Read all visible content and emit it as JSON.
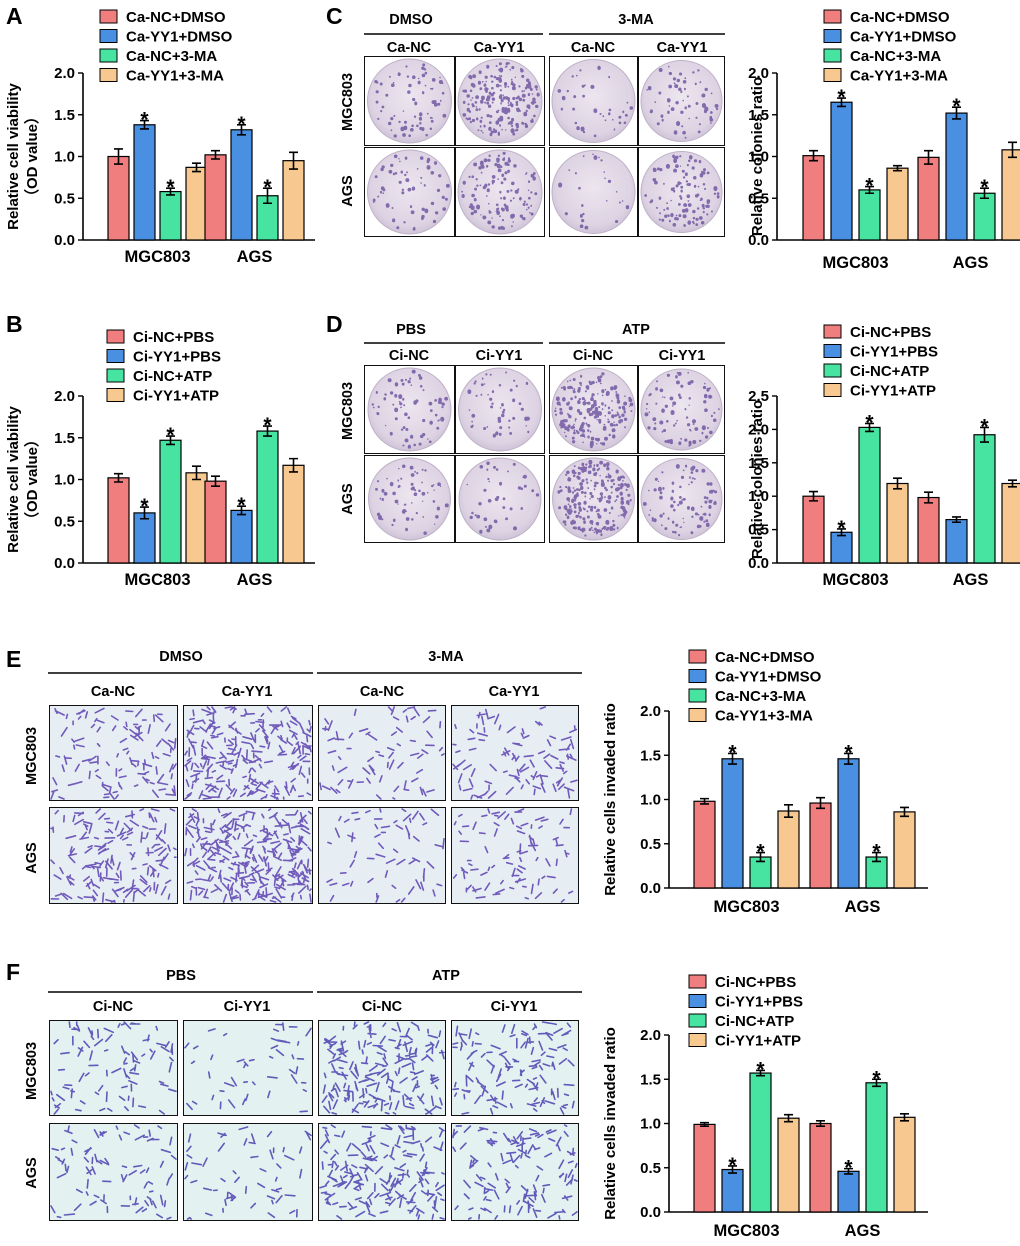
{
  "colors": {
    "c1": "#f07e7e",
    "c2": "#4a90e2",
    "c3": "#47e3a0",
    "c4": "#f8c891"
  },
  "panel_letters": [
    "A",
    "B",
    "C",
    "D",
    "E",
    "F"
  ],
  "photo_grids": [
    {
      "id": "C",
      "groups": [
        "DMSO",
        "3-MA"
      ],
      "columns": [
        "Ca-NC",
        "Ca-YY1",
        "Ca-NC",
        "Ca-YY1"
      ],
      "rows": [
        "MGC803",
        "AGS"
      ],
      "kind": "colony"
    },
    {
      "id": "D",
      "groups": [
        "PBS",
        "ATP"
      ],
      "columns": [
        "Ci-NC",
        "Ci-YY1",
        "Ci-NC",
        "Ci-YY1"
      ],
      "rows": [
        "MGC803",
        "AGS"
      ],
      "kind": "colony"
    },
    {
      "id": "E",
      "groups": [
        "DMSO",
        "3-MA"
      ],
      "columns": [
        "Ca-NC",
        "Ca-YY1",
        "Ca-NC",
        "Ca-YY1"
      ],
      "rows": [
        "MGC803",
        "AGS"
      ],
      "kind": "invasion"
    },
    {
      "id": "F",
      "groups": [
        "PBS",
        "ATP"
      ],
      "columns": [
        "Ci-NC",
        "Ci-YY1",
        "Ci-NC",
        "Ci-YY1"
      ],
      "rows": [
        "MGC803",
        "AGS"
      ],
      "kind": "invasion"
    }
  ],
  "chart_data": [
    {
      "id": "A",
      "type": "bar",
      "ylabel": [
        "Relative cell viability",
        "（OD value）"
      ],
      "categories": [
        "MGC803",
        "AGS"
      ],
      "ylim": [
        0,
        2.0
      ],
      "yticks": [
        "0.0",
        "0.5",
        "1.0",
        "1.5",
        "2.0"
      ],
      "series": [
        {
          "name": "Ca-NC+DMSO",
          "values": [
            1.0,
            1.02
          ],
          "errors": [
            0.09,
            0.05
          ],
          "sig": [
            false,
            false
          ]
        },
        {
          "name": "Ca-YY1+DMSO",
          "values": [
            1.38,
            1.32
          ],
          "errors": [
            0.05,
            0.06
          ],
          "sig": [
            true,
            true
          ]
        },
        {
          "name": "Ca-NC+3-MA",
          "values": [
            0.58,
            0.53
          ],
          "errors": [
            0.04,
            0.09
          ],
          "sig": [
            true,
            true
          ]
        },
        {
          "name": "Ca-YY1+3-MA",
          "values": [
            0.87,
            0.95
          ],
          "errors": [
            0.05,
            0.1
          ],
          "sig": [
            false,
            false
          ]
        }
      ]
    },
    {
      "id": "B",
      "type": "bar",
      "ylabel": [
        "Relative cell viability",
        "（OD value）"
      ],
      "categories": [
        "MGC803",
        "AGS"
      ],
      "ylim": [
        0,
        2.0
      ],
      "yticks": [
        "0.0",
        "0.5",
        "1.0",
        "1.5",
        "2.0"
      ],
      "series": [
        {
          "name": "Ci-NC+PBS",
          "values": [
            1.02,
            0.98
          ],
          "errors": [
            0.05,
            0.06
          ],
          "sig": [
            false,
            false
          ]
        },
        {
          "name": "Ci-YY1+PBS",
          "values": [
            0.6,
            0.63
          ],
          "errors": [
            0.07,
            0.05
          ],
          "sig": [
            true,
            true
          ]
        },
        {
          "name": "Ci-NC+ATP",
          "values": [
            1.47,
            1.58
          ],
          "errors": [
            0.05,
            0.06
          ],
          "sig": [
            true,
            true
          ]
        },
        {
          "name": "Ci-YY1+ATP",
          "values": [
            1.08,
            1.17
          ],
          "errors": [
            0.08,
            0.08
          ],
          "sig": [
            false,
            false
          ]
        }
      ]
    },
    {
      "id": "C",
      "type": "bar",
      "ylabel": [
        "Relative colonies ratio"
      ],
      "categories": [
        "MGC803",
        "AGS"
      ],
      "ylim": [
        0,
        2.0
      ],
      "yticks": [
        "0.0",
        "0.5",
        "1.0",
        "1.5",
        "2.0"
      ],
      "series": [
        {
          "name": "Ca-NC+DMSO",
          "values": [
            1.01,
            0.99
          ],
          "errors": [
            0.06,
            0.08
          ],
          "sig": [
            false,
            false
          ]
        },
        {
          "name": "Ca-YY1+DMSO",
          "values": [
            1.65,
            1.52
          ],
          "errors": [
            0.05,
            0.07
          ],
          "sig": [
            true,
            true
          ]
        },
        {
          "name": "Ca-NC+3-MA",
          "values": [
            0.6,
            0.56
          ],
          "errors": [
            0.04,
            0.06
          ],
          "sig": [
            true,
            true
          ]
        },
        {
          "name": "Ca-YY1+3-MA",
          "values": [
            0.86,
            1.08
          ],
          "errors": [
            0.03,
            0.09
          ],
          "sig": [
            false,
            false
          ]
        }
      ]
    },
    {
      "id": "D",
      "type": "bar",
      "ylabel": [
        "Relative colonies ratio"
      ],
      "categories": [
        "MGC803",
        "AGS"
      ],
      "ylim": [
        0,
        2.5
      ],
      "yticks": [
        "0.0",
        "0.5",
        "1.0",
        "1.5",
        "2.0",
        "2.5"
      ],
      "series": [
        {
          "name": "Ci-NC+PBS",
          "values": [
            1.0,
            0.98
          ],
          "errors": [
            0.07,
            0.08
          ],
          "sig": [
            false,
            false
          ]
        },
        {
          "name": "Ci-YY1+PBS",
          "values": [
            0.46,
            0.65
          ],
          "errors": [
            0.05,
            0.04
          ],
          "sig": [
            true,
            false
          ]
        },
        {
          "name": "Ci-NC+ATP",
          "values": [
            2.03,
            1.92
          ],
          "errors": [
            0.06,
            0.11
          ],
          "sig": [
            true,
            true
          ]
        },
        {
          "name": "Ci-YY1+ATP",
          "values": [
            1.19,
            1.19
          ],
          "errors": [
            0.08,
            0.05
          ],
          "sig": [
            false,
            false
          ]
        }
      ]
    },
    {
      "id": "E",
      "type": "bar",
      "ylabel": [
        "Relative cells invaded ratio"
      ],
      "categories": [
        "MGC803",
        "AGS"
      ],
      "ylim": [
        0,
        2.0
      ],
      "yticks": [
        "0.0",
        "0.5",
        "1.0",
        "1.5",
        "2.0"
      ],
      "series": [
        {
          "name": "Ca-NC+DMSO",
          "values": [
            0.98,
            0.96
          ],
          "errors": [
            0.03,
            0.06
          ],
          "sig": [
            false,
            false
          ]
        },
        {
          "name": "Ca-YY1+DMSO",
          "values": [
            1.46,
            1.46
          ],
          "errors": [
            0.06,
            0.06
          ],
          "sig": [
            true,
            true
          ]
        },
        {
          "name": "Ca-NC+3-MA",
          "values": [
            0.35,
            0.35
          ],
          "errors": [
            0.05,
            0.05
          ],
          "sig": [
            true,
            true
          ]
        },
        {
          "name": "Ca-YY1+3-MA",
          "values": [
            0.87,
            0.86
          ],
          "errors": [
            0.07,
            0.05
          ],
          "sig": [
            false,
            false
          ]
        }
      ]
    },
    {
      "id": "F",
      "type": "bar",
      "ylabel": [
        "Relative cells invaded ratio"
      ],
      "categories": [
        "MGC803",
        "AGS"
      ],
      "ylim": [
        0,
        2.0
      ],
      "yticks": [
        "0.0",
        "0.5",
        "1.0",
        "1.5",
        "2.0"
      ],
      "series": [
        {
          "name": "Ci-NC+PBS",
          "values": [
            0.99,
            1.0
          ],
          "errors": [
            0.02,
            0.03
          ],
          "sig": [
            false,
            false
          ]
        },
        {
          "name": "Ci-YY1+PBS",
          "values": [
            0.48,
            0.46
          ],
          "errors": [
            0.04,
            0.03
          ],
          "sig": [
            true,
            true
          ]
        },
        {
          "name": "Ci-NC+ATP",
          "values": [
            1.57,
            1.46
          ],
          "errors": [
            0.03,
            0.04
          ],
          "sig": [
            true,
            true
          ]
        },
        {
          "name": "Ci-YY1+ATP",
          "values": [
            1.06,
            1.07
          ],
          "errors": [
            0.04,
            0.04
          ],
          "sig": [
            false,
            false
          ]
        }
      ]
    }
  ]
}
